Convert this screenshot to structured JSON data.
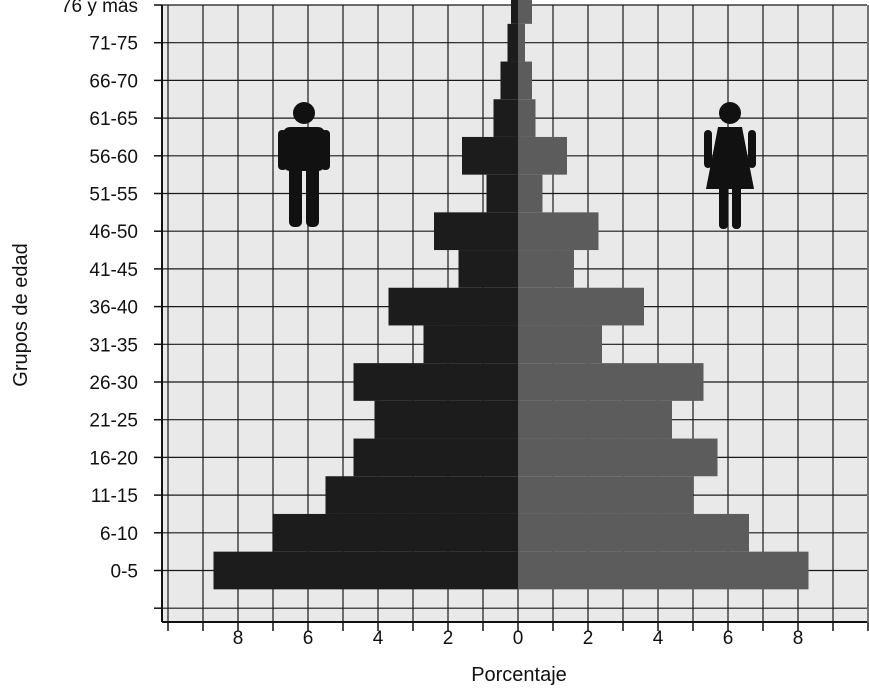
{
  "chart_data": {
    "type": "bar",
    "orientation": "horizontal",
    "xlabel": "Porcentaje",
    "ylabel": "Grupos de edad",
    "xlim": [
      -10,
      10
    ],
    "x_tick_values": [
      8,
      6,
      4,
      2,
      0,
      2,
      4,
      6,
      8
    ],
    "x_tick_labels": [
      "8",
      "6",
      "4",
      "2",
      "0",
      "2",
      "4",
      "6",
      "8"
    ],
    "categories": [
      "0-5",
      "6-10",
      "11-15",
      "16-20",
      "21-25",
      "26-30",
      "31-35",
      "36-40",
      "41-45",
      "46-50",
      "51-55",
      "56-60",
      "61-65",
      "66-70",
      "71-75",
      "76 y más"
    ],
    "series": [
      {
        "icon": "male-figure-icon",
        "color": "#1c1c1c",
        "side": "left",
        "values": [
          8.7,
          7.0,
          5.5,
          4.7,
          4.1,
          4.7,
          2.7,
          3.7,
          1.7,
          2.4,
          0.9,
          1.6,
          0.7,
          0.5,
          0.3,
          0.2
        ]
      },
      {
        "icon": "female-figure-icon",
        "color": "#5c5c5c",
        "side": "right",
        "values": [
          8.3,
          6.6,
          5.0,
          5.7,
          4.4,
          5.3,
          2.4,
          3.6,
          1.6,
          2.3,
          0.7,
          1.4,
          0.5,
          0.4,
          0.2,
          0.4
        ]
      }
    ],
    "grid": true,
    "background_color": "#e9e9e9",
    "grid_color": "#1a1a1a"
  }
}
